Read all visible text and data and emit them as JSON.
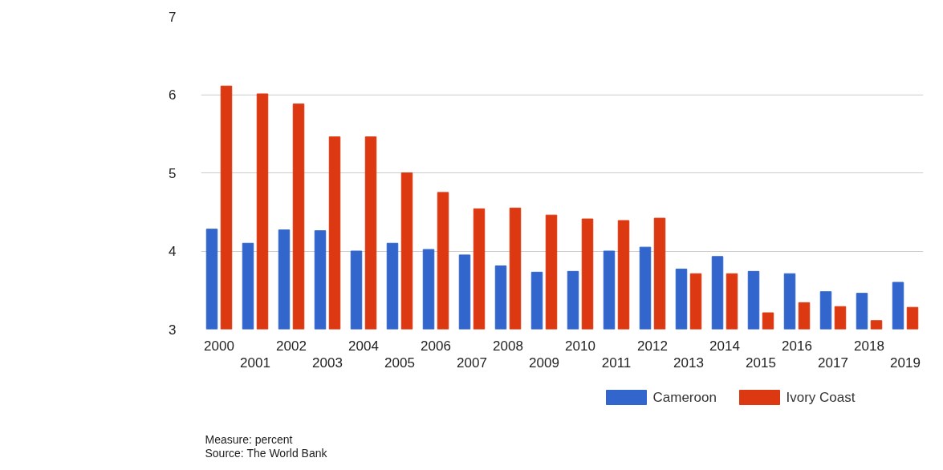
{
  "chart_data": {
    "type": "bar",
    "categories": [
      "2000",
      "2001",
      "2002",
      "2003",
      "2004",
      "2005",
      "2006",
      "2007",
      "2008",
      "2009",
      "2010",
      "2011",
      "2012",
      "2013",
      "2014",
      "2015",
      "2016",
      "2017",
      "2018",
      "2019"
    ],
    "series": [
      {
        "name": "Cameroon",
        "color": "#3366cc",
        "values": [
          4.28,
          4.1,
          4.27,
          4.26,
          4.0,
          4.1,
          4.02,
          3.95,
          3.81,
          3.73,
          3.74,
          4.0,
          4.05,
          3.77,
          3.93,
          3.74,
          3.71,
          3.48,
          3.46,
          3.6
        ]
      },
      {
        "name": "Ivory Coast",
        "color": "#dc3912",
        "values": [
          6.11,
          6.01,
          5.88,
          5.46,
          5.46,
          5.0,
          4.75,
          4.54,
          4.55,
          4.46,
          4.41,
          4.39,
          4.42,
          3.71,
          3.71,
          3.21,
          3.34,
          3.29,
          3.11,
          3.28
        ]
      }
    ],
    "ylim": [
      3,
      7
    ],
    "yticks": [
      3,
      4,
      5,
      6,
      7
    ],
    "grid": "y",
    "legend": "bottom",
    "annotations": [
      "Measure: percent",
      "Source: The World Bank"
    ]
  }
}
